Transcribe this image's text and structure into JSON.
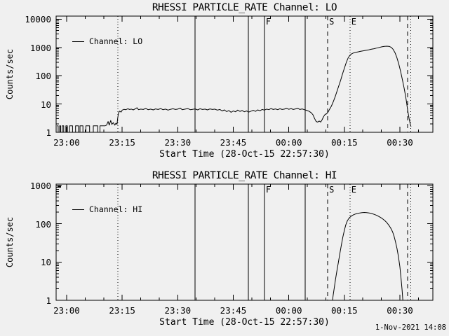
{
  "page": {
    "background": "#f0f0f0",
    "foreground": "#000000",
    "timestamp": "1-Nov-2021 14:08"
  },
  "chart_data": [
    {
      "type": "line",
      "title": "RHESSI PARTICLE_RATE Channel: LO",
      "ylabel": "Counts/sec",
      "xlabel": "Start Time (28-Oct-15 22:57:30)",
      "yscale": "log",
      "ylim": [
        1,
        12850
      ],
      "ytick_values": [
        1,
        10,
        100,
        1000,
        10000
      ],
      "ytick_labels": [
        "1",
        "10",
        "100",
        "1000",
        "10000"
      ],
      "xlim_minutes": [
        -2.84,
        98.9
      ],
      "xminor_step_minutes": 5,
      "xticks": [
        {
          "t": 0,
          "label": "23:00"
        },
        {
          "t": 15,
          "label": "23:15"
        },
        {
          "t": 30,
          "label": "23:30"
        },
        {
          "t": 45,
          "label": "23:45"
        },
        {
          "t": 60,
          "label": "00:00"
        },
        {
          "t": 75,
          "label": "00:15"
        },
        {
          "t": 90,
          "label": "00:30"
        }
      ],
      "legend": {
        "label": "Channel: LO",
        "position": "upper-left"
      },
      "grid": false,
      "events": [
        {
          "t": 13.8,
          "style": "dotted",
          "label": ""
        },
        {
          "t": 34.7,
          "style": "solid",
          "label": ""
        },
        {
          "t": 49.1,
          "style": "solid",
          "label": ""
        },
        {
          "t": 53.4,
          "style": "solid",
          "label": "F"
        },
        {
          "t": 64.4,
          "style": "solid",
          "label": ""
        },
        {
          "t": 70.5,
          "style": "dashed",
          "label": "S"
        },
        {
          "t": 76.5,
          "style": "dotted",
          "label": "E"
        },
        {
          "t": 92.1,
          "style": "dashed",
          "label": ""
        },
        {
          "t": 92.9,
          "style": "dotted",
          "label": ""
        }
      ],
      "series": [
        {
          "name": "Channel: LO",
          "points": [
            [
              -2.6,
              1.7
            ],
            [
              -2.3,
              1.7
            ],
            [
              -2.3,
              1
            ],
            [
              -1.9,
              1
            ],
            [
              -1.9,
              1.7
            ],
            [
              -1.6,
              1.7
            ],
            [
              -1.6,
              1
            ],
            [
              -1.2,
              1
            ],
            [
              -1.2,
              1.7
            ],
            [
              -0.8,
              1.7
            ],
            [
              -0.8,
              1
            ],
            [
              -0.2,
              1
            ],
            [
              -0.2,
              1.7
            ],
            [
              0.2,
              1.7
            ],
            [
              0.2,
              1
            ],
            [
              0.8,
              1
            ],
            [
              0.8,
              1.7
            ],
            [
              1.6,
              1.7
            ],
            [
              1.6,
              1
            ],
            [
              2.4,
              1
            ],
            [
              2.4,
              1.7
            ],
            [
              3.2,
              1.7
            ],
            [
              3.2,
              1
            ],
            [
              3.6,
              1
            ],
            [
              3.6,
              1.7
            ],
            [
              4.4,
              1.7
            ],
            [
              4.4,
              1
            ],
            [
              5.2,
              1
            ],
            [
              5.2,
              1.7
            ],
            [
              6.2,
              1.7
            ],
            [
              6.2,
              1
            ],
            [
              7.2,
              1
            ],
            [
              7.2,
              1.7
            ],
            [
              8.4,
              1.7
            ],
            [
              8.4,
              1
            ],
            [
              9,
              1
            ],
            [
              9,
              1.7
            ],
            [
              10.4,
              1.7
            ],
            [
              10.8,
              1.8
            ],
            [
              11.2,
              2.4
            ],
            [
              11.5,
              1.8
            ],
            [
              11.9,
              2.6
            ],
            [
              12.2,
              1.9
            ],
            [
              12.6,
              2.2
            ],
            [
              13,
              1.8
            ],
            [
              13.3,
              2.1
            ],
            [
              13.6,
              1.9
            ],
            [
              13.8,
              3.2
            ],
            [
              14,
              4.8
            ],
            [
              14.3,
              5.6
            ],
            [
              14.7,
              5.2
            ],
            [
              15,
              6.1
            ],
            [
              15.5,
              6.5
            ],
            [
              16,
              6.3
            ],
            [
              16.5,
              6.8
            ],
            [
              17,
              6.4
            ],
            [
              17.5,
              6.6
            ],
            [
              18,
              6.2
            ],
            [
              18.5,
              6.7
            ],
            [
              19,
              7.4
            ],
            [
              19.4,
              6.3
            ],
            [
              20,
              6.6
            ],
            [
              20.7,
              6.4
            ],
            [
              21.4,
              7
            ],
            [
              22,
              6.3
            ],
            [
              22.7,
              6.6
            ],
            [
              23.4,
              6.2
            ],
            [
              24,
              6.7
            ],
            [
              24.7,
              6.4
            ],
            [
              25.4,
              6.9
            ],
            [
              26,
              6.3
            ],
            [
              26.7,
              6.6
            ],
            [
              27.4,
              6.1
            ],
            [
              28,
              6.5
            ],
            [
              28.7,
              6.8
            ],
            [
              29.4,
              6.4
            ],
            [
              30,
              6.6
            ],
            [
              30.7,
              7.2
            ],
            [
              31.2,
              6.3
            ],
            [
              32,
              6.6
            ],
            [
              32.7,
              6.9
            ],
            [
              33.4,
              6.3
            ],
            [
              34,
              6.5
            ],
            [
              34.7,
              6.7
            ],
            [
              35.4,
              6.2
            ],
            [
              36,
              6.8
            ],
            [
              36.7,
              6.4
            ],
            [
              37.4,
              6.6
            ],
            [
              38,
              6.2
            ],
            [
              38.7,
              6.7
            ],
            [
              39.4,
              6.4
            ],
            [
              40,
              6.6
            ],
            [
              40.7,
              6.1
            ],
            [
              41.4,
              6.4
            ],
            [
              42,
              5.7
            ],
            [
              42.6,
              6.2
            ],
            [
              43.2,
              5.4
            ],
            [
              43.8,
              5.9
            ],
            [
              44.4,
              5.1
            ],
            [
              45,
              5.7
            ],
            [
              45.6,
              5.3
            ],
            [
              46.2,
              6.1
            ],
            [
              46.8,
              5.5
            ],
            [
              47.4,
              5.9
            ],
            [
              48,
              5.3
            ],
            [
              48.6,
              5.7
            ],
            [
              49.2,
              5.2
            ],
            [
              49.8,
              5.6
            ],
            [
              50.4,
              6
            ],
            [
              51,
              5.5
            ],
            [
              51.6,
              6.2
            ],
            [
              52.2,
              5.8
            ],
            [
              52.8,
              6.4
            ],
            [
              53.4,
              6.1
            ],
            [
              54,
              6.6
            ],
            [
              54.6,
              6.3
            ],
            [
              55.2,
              6.9
            ],
            [
              55.8,
              6.4
            ],
            [
              56.4,
              6.7
            ],
            [
              57,
              6.3
            ],
            [
              57.6,
              6.8
            ],
            [
              58.2,
              6.4
            ],
            [
              58.8,
              6.6
            ],
            [
              59.4,
              7.1
            ],
            [
              60,
              6.5
            ],
            [
              60.6,
              6.9
            ],
            [
              61.2,
              6.4
            ],
            [
              61.8,
              6.7
            ],
            [
              62.4,
              7.1
            ],
            [
              63,
              6.4
            ],
            [
              63.6,
              6.7
            ],
            [
              64.2,
              6.3
            ],
            [
              64.8,
              6
            ],
            [
              65.4,
              5.6
            ],
            [
              66,
              5
            ],
            [
              66.5,
              4.2
            ],
            [
              67,
              3
            ],
            [
              67.4,
              2.4
            ],
            [
              67.8,
              2.3
            ],
            [
              68.2,
              2.5
            ],
            [
              68.6,
              2.3
            ],
            [
              69,
              2.8
            ],
            [
              69.4,
              3.6
            ],
            [
              69.8,
              4.3
            ],
            [
              70.2,
              4.5
            ],
            [
              70.6,
              5.2
            ],
            [
              71,
              6.5
            ],
            [
              71.5,
              8.5
            ],
            [
              72,
              12
            ],
            [
              72.5,
              18
            ],
            [
              73,
              28
            ],
            [
              73.5,
              44
            ],
            [
              74,
              70
            ],
            [
              74.5,
              115
            ],
            [
              75,
              185
            ],
            [
              75.5,
              290
            ],
            [
              76,
              420
            ],
            [
              76.5,
              530
            ],
            [
              77,
              600
            ],
            [
              77.5,
              640
            ],
            [
              78,
              670
            ],
            [
              78.7,
              700
            ],
            [
              79.4,
              730
            ],
            [
              80.1,
              760
            ],
            [
              80.8,
              790
            ],
            [
              81.5,
              820
            ],
            [
              82.2,
              860
            ],
            [
              83,
              900
            ],
            [
              83.7,
              950
            ],
            [
              84.4,
              1000
            ],
            [
              85.1,
              1050
            ],
            [
              85.8,
              1090
            ],
            [
              86.5,
              1110
            ],
            [
              87.2,
              1080
            ],
            [
              87.7,
              1000
            ],
            [
              88.2,
              850
            ],
            [
              88.7,
              640
            ],
            [
              89.2,
              430
            ],
            [
              89.7,
              260
            ],
            [
              90.2,
              140
            ],
            [
              90.7,
              70
            ],
            [
              91.2,
              33
            ],
            [
              91.7,
              14
            ],
            [
              92.1,
              6
            ],
            [
              92.5,
              3
            ],
            [
              92.8,
              1.9
            ],
            [
              93,
              1.6
            ]
          ]
        }
      ]
    },
    {
      "type": "line",
      "title": "RHESSI PARTICLE_RATE Channel: HI",
      "ylabel": "Counts/sec",
      "xlabel": "Start Time (28-Oct-15 22:57:30)",
      "yscale": "log",
      "ylim": [
        1,
        1090
      ],
      "ytick_values": [
        1,
        10,
        100,
        1000
      ],
      "ytick_labels": [
        "1",
        "10",
        "100",
        "1000"
      ],
      "xlim_minutes": [
        -2.84,
        98.9
      ],
      "xminor_step_minutes": 5,
      "xticks": [
        {
          "t": 0,
          "label": "23:00"
        },
        {
          "t": 15,
          "label": "23:15"
        },
        {
          "t": 30,
          "label": "23:30"
        },
        {
          "t": 45,
          "label": "23:45"
        },
        {
          "t": 60,
          "label": "00:00"
        },
        {
          "t": 75,
          "label": "00:15"
        },
        {
          "t": 90,
          "label": "00:30"
        }
      ],
      "legend": {
        "label": "Channel: HI",
        "position": "upper-left"
      },
      "grid": false,
      "clip_marker": true,
      "events": [
        {
          "t": 13.8,
          "style": "dotted",
          "label": ""
        },
        {
          "t": 34.7,
          "style": "solid",
          "label": ""
        },
        {
          "t": 49.1,
          "style": "solid",
          "label": ""
        },
        {
          "t": 53.4,
          "style": "solid",
          "label": "F"
        },
        {
          "t": 64.4,
          "style": "solid",
          "label": ""
        },
        {
          "t": 70.5,
          "style": "dashed",
          "label": "S"
        },
        {
          "t": 76.5,
          "style": "dotted",
          "label": "E"
        },
        {
          "t": 92.1,
          "style": "dashed",
          "label": ""
        },
        {
          "t": 92.9,
          "style": "dotted",
          "label": ""
        }
      ],
      "series": [
        {
          "name": "Channel: HI",
          "points": [
            [
              71.8,
              1
            ],
            [
              72,
              1.4
            ],
            [
              72.3,
              2.2
            ],
            [
              72.6,
              3.5
            ],
            [
              73,
              6
            ],
            [
              73.4,
              10
            ],
            [
              73.8,
              17
            ],
            [
              74.2,
              28
            ],
            [
              74.6,
              45
            ],
            [
              75,
              68
            ],
            [
              75.4,
              95
            ],
            [
              75.8,
              120
            ],
            [
              76.2,
              138
            ],
            [
              76.6,
              152
            ],
            [
              77,
              162
            ],
            [
              77.5,
              172
            ],
            [
              78,
              180
            ],
            [
              78.6,
              186
            ],
            [
              79.2,
              192
            ],
            [
              79.8,
              196
            ],
            [
              80.4,
              198
            ],
            [
              81,
              196
            ],
            [
              81.7,
              191
            ],
            [
              82.4,
              185
            ],
            [
              83.1,
              176
            ],
            [
              83.8,
              165
            ],
            [
              84.5,
              152
            ],
            [
              85.2,
              138
            ],
            [
              85.9,
              122
            ],
            [
              86.5,
              106
            ],
            [
              87,
              92
            ],
            [
              87.5,
              78
            ],
            [
              88,
              62
            ],
            [
              88.4,
              48
            ],
            [
              88.8,
              34
            ],
            [
              89.2,
              23
            ],
            [
              89.6,
              14
            ],
            [
              90,
              7.5
            ],
            [
              90.3,
              3.8
            ],
            [
              90.6,
              1.8
            ],
            [
              90.8,
              1
            ]
          ]
        }
      ]
    }
  ]
}
